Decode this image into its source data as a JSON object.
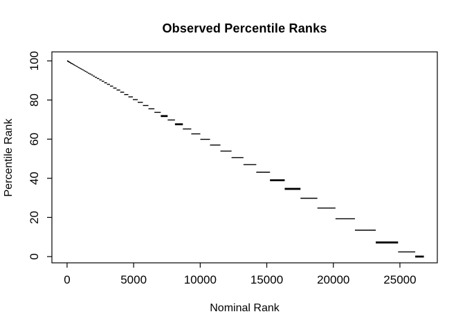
{
  "title": "Observed Percentile Ranks",
  "chart_data": {
    "type": "scatter",
    "title": "Observed Percentile Ranks",
    "xlabel": "Nominal Rank",
    "ylabel": "Percentile Rank",
    "x_ticks": [
      0,
      5000,
      10000,
      15000,
      20000,
      25000
    ],
    "y_ticks": [
      0,
      20,
      40,
      60,
      80,
      100
    ],
    "xlim": [
      -1140,
      27810
    ],
    "ylim": [
      -3.2,
      104.6
    ],
    "grid": false,
    "legend": "none",
    "point_color": "#000000",
    "background_color": "#ffffff",
    "n_points": 26800,
    "description": "Step-like descending curve of tied percentile-rank groups; each segment is [nominal_rank_start, nominal_rank_end, percentile_rank, bold_flag]",
    "segments": [
      [
        0,
        7,
        100
      ],
      [
        7,
        15,
        99.9
      ],
      [
        15,
        24,
        99.9
      ],
      [
        24,
        33,
        99.9
      ],
      [
        33,
        43,
        99.8
      ],
      [
        43,
        53,
        99.8
      ],
      [
        53,
        64,
        99.8
      ],
      [
        64,
        76,
        99.7
      ],
      [
        76,
        89,
        99.7
      ],
      [
        89,
        103,
        99.6
      ],
      [
        103,
        118,
        99.6
      ],
      [
        118,
        134,
        99.5
      ],
      [
        134,
        151,
        99.4
      ],
      [
        151,
        169,
        99.4
      ],
      [
        169,
        189,
        99.3
      ],
      [
        189,
        210,
        99.2
      ],
      [
        210,
        232,
        99.1
      ],
      [
        232,
        256,
        99.0
      ],
      [
        256,
        282,
        98.9
      ],
      [
        282,
        310,
        98.8
      ],
      [
        310,
        340,
        98.7
      ],
      [
        340,
        372,
        98.6
      ],
      [
        372,
        406,
        98.5
      ],
      [
        406,
        442,
        98.4
      ],
      [
        442,
        482,
        98.2
      ],
      [
        482,
        524,
        98.0
      ],
      [
        524,
        569,
        97.9
      ],
      [
        569,
        617,
        97.7
      ],
      [
        617,
        669,
        97.5
      ],
      [
        669,
        725,
        97.3
      ],
      [
        725,
        784,
        97.1
      ],
      [
        784,
        848,
        96.8
      ],
      [
        848,
        917,
        96.6
      ],
      [
        917,
        990,
        96.3
      ],
      [
        990,
        1069,
        96.0
      ],
      [
        1069,
        1153,
        95.7
      ],
      [
        1153,
        1244,
        95.4
      ],
      [
        1244,
        1341,
        95.0
      ],
      [
        1341,
        1444,
        94.6
      ],
      [
        1444,
        1556,
        94.2
      ],
      [
        1556,
        1675,
        93.7
      ],
      [
        1675,
        1803,
        93.3
      ],
      [
        1803,
        1940,
        92.8
      ],
      [
        1940,
        2088,
        92.2
      ],
      [
        2088,
        2245,
        91.6
      ],
      [
        2245,
        2414,
        91.0
      ],
      [
        2414,
        2596,
        90.3
      ],
      [
        2596,
        2790,
        89.6
      ],
      [
        2790,
        2998,
        88.8
      ],
      [
        2998,
        3221,
        88.0
      ],
      [
        3221,
        3461,
        87.1
      ],
      [
        3461,
        3717,
        86.1
      ],
      [
        3717,
        3992,
        85.1
      ],
      [
        3992,
        4287,
        84.0
      ],
      [
        4287,
        4603,
        82.8
      ],
      [
        4603,
        4942,
        81.6
      ],
      [
        4942,
        5305,
        80.2
      ],
      [
        5305,
        5695,
        78.8
      ],
      [
        5695,
        6112,
        77.2
      ],
      [
        6112,
        6560,
        75.5
      ],
      [
        6560,
        7039,
        73.7
      ],
      [
        7039,
        7554,
        71.8,
        1
      ],
      [
        7554,
        8105,
        69.8
      ],
      [
        8105,
        8696,
        67.6,
        1
      ],
      [
        8696,
        9329,
        65.2
      ],
      [
        9329,
        10008,
        62.7
      ],
      [
        10008,
        10736,
        59.9
      ],
      [
        10736,
        11517,
        57.0
      ],
      [
        11517,
        12353,
        53.9
      ],
      [
        12353,
        13250,
        50.6
      ],
      [
        13250,
        14212,
        47.0
      ],
      [
        14212,
        15242,
        43.1
      ],
      [
        15242,
        16347,
        39.0,
        1
      ],
      [
        16347,
        17532,
        34.6,
        1
      ],
      [
        17532,
        18801,
        29.8
      ],
      [
        18801,
        20162,
        24.8
      ],
      [
        20162,
        21622,
        19.3
      ],
      [
        21622,
        23186,
        13.5
      ],
      [
        23186,
        24863,
        7.2,
        1
      ],
      [
        24863,
        26150,
        2.4
      ],
      [
        26150,
        26800,
        0,
        1
      ]
    ]
  }
}
